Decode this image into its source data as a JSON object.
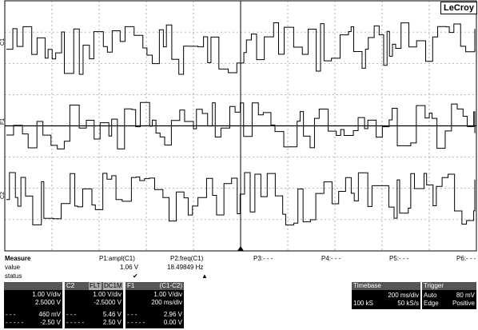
{
  "logo": "LeCroy",
  "channels": {
    "c1": "C1",
    "f1": "F1",
    "c2": "C2"
  },
  "measure": {
    "title": "Measure",
    "row_value": "value",
    "row_status": "status",
    "p1": {
      "label": "P1:ampl(C1)",
      "value": "1.06 V",
      "status": "✔"
    },
    "p2": {
      "label": "P2:freq(C1)",
      "value": "18.49849 Hz",
      "status": "▲"
    },
    "p3": "P3:- - -",
    "p4": "P4:- - -",
    "p5": "P5:- - -",
    "p6": "P6:- - -"
  },
  "c1_box": {
    "vdiv": "1.00 V/div",
    "offset": "2.5000 V",
    "meas1_label": "- - -",
    "meas1": "460 mV",
    "meas2_label": "- - - - -",
    "meas2": "-2.50 V"
  },
  "c2_box": {
    "label": "C2",
    "tag1": "FLT",
    "tag2": "DC1M",
    "vdiv": "1.00 V/div",
    "offset": "-2.5000 V",
    "meas1_label": "- - -",
    "meas1": "5.46 V",
    "meas2_label": "- - - - -",
    "meas2": "2.50 V"
  },
  "f1_box": {
    "label": "F1",
    "func": "(C1-C2)",
    "vdiv": "1.00 V/div",
    "tdiv": "200 ms/div",
    "meas1_label": "- - -",
    "meas1": "2.96 V",
    "meas2_label": "- - - - -",
    "meas2": "0.00 V"
  },
  "timebase": {
    "title": "Timebase",
    "tdiv": "200 ms/div",
    "samples": "100 kS",
    "rate": "50 kS/s"
  },
  "trigger": {
    "title": "Trigger",
    "mode": "Auto",
    "level": "80 mV",
    "coupling": "Edge",
    "slope": "Positive"
  }
}
